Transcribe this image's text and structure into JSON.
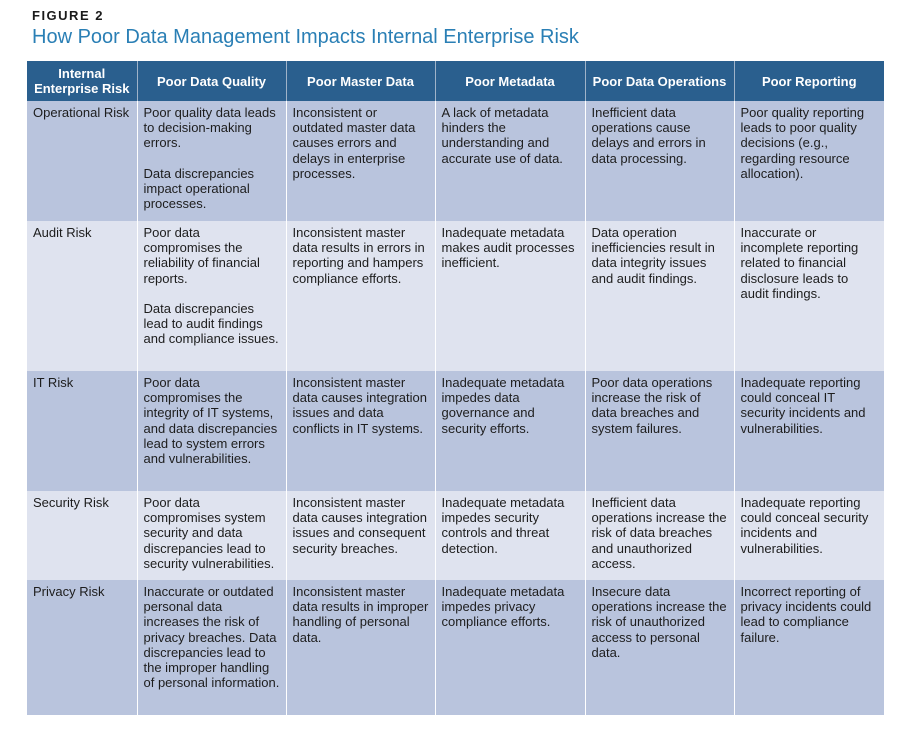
{
  "figure_label": "FIGURE 2",
  "title": "How Poor Data Management Impacts Internal Enterprise Risk",
  "columns": [
    "Internal Enterprise Risk",
    "Poor Data Quality",
    "Poor Master Data",
    "Poor Metadata",
    "Poor Data Operations",
    "Poor Reporting"
  ],
  "rows": [
    {
      "risk": "Operational Risk",
      "cells": [
        [
          "Poor quality data leads to decision-making errors.",
          "Data discrepancies impact operational processes."
        ],
        [
          "Inconsistent or outdated master data causes errors and delays in enterprise processes."
        ],
        [
          "A lack of metadata hinders the understanding and accurate use of data."
        ],
        [
          "Inefficient data operations cause delays and errors in data processing."
        ],
        [
          "Poor quality reporting leads to poor quality decisions (e.g., regarding resource allocation)."
        ]
      ]
    },
    {
      "risk": "Audit Risk",
      "cells": [
        [
          "Poor data compromises the reliability of financial reports.",
          "Data discrepancies lead to audit findings and compliance issues."
        ],
        [
          "Inconsistent master data results in errors in reporting and hampers compliance efforts."
        ],
        [
          "Inadequate metadata makes audit processes inefficient."
        ],
        [
          "Data operation inefficiencies result in data integrity issues and audit findings."
        ],
        [
          "Inaccurate or incomplete reporting related to financial disclosure leads to audit findings."
        ]
      ]
    },
    {
      "risk": "IT Risk",
      "cells": [
        [
          "Poor data compromises the integrity of IT systems, and data discrepancies lead to system errors and vulnerabilities."
        ],
        [
          "Inconsistent master data causes integration issues and data conflicts in IT systems."
        ],
        [
          "Inadequate metadata impedes data governance and security efforts."
        ],
        [
          "Poor data operations increase the risk of data breaches and system failures."
        ],
        [
          "Inadequate reporting could conceal IT security incidents and vulnerabilities."
        ]
      ]
    },
    {
      "risk": "Security Risk",
      "cells": [
        [
          "Poor data compromises system security and data discrepancies lead to security vulnerabilities."
        ],
        [
          "Inconsistent master data causes integration issues and consequent security breaches."
        ],
        [
          "Inadequate metadata impedes security controls and threat detection."
        ],
        [
          "Inefficient data operations increase the risk of data breaches and unauthorized access."
        ],
        [
          "Inadequate reporting could conceal security incidents and vulnerabilities."
        ]
      ]
    },
    {
      "risk": "Privacy Risk",
      "cells": [
        [
          "Inaccurate or outdated personal data increases the risk of privacy breaches. Data discrepancies lead to the improper handling of personal information."
        ],
        [
          "Inconsistent master data results in improper handling of personal data."
        ],
        [
          "Inadequate metadata impedes privacy compliance efforts."
        ],
        [
          "Insecure data operations increase the risk of unauthorized access to personal data."
        ],
        [
          "Incorrect reporting of privacy incidents could lead to compliance failure."
        ]
      ]
    }
  ]
}
